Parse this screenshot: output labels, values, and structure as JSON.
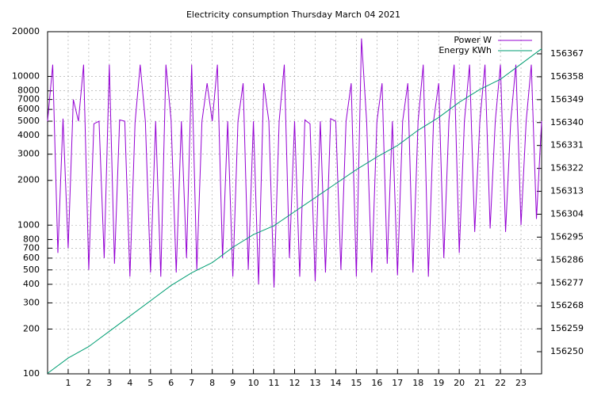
{
  "chart_data": {
    "type": "line",
    "title": "Electricity consumption Thursday March 04 2021",
    "log_y": true,
    "grid": true,
    "legend": "top-right",
    "xlim": [
      0,
      24
    ],
    "xticks": [
      1,
      2,
      3,
      4,
      5,
      6,
      7,
      8,
      9,
      10,
      11,
      12,
      13,
      14,
      15,
      16,
      17,
      18,
      19,
      20,
      21,
      22,
      23
    ],
    "ylim": [
      100,
      20000
    ],
    "yticks": [
      100,
      200,
      300,
      400,
      500,
      600,
      700,
      800,
      1000,
      2000,
      3000,
      4000,
      5000,
      6000,
      7000,
      8000,
      10000,
      20000
    ],
    "y2lim": [
      156241.3,
      156375.7
    ],
    "y2ticks": [
      156250,
      156259,
      156268,
      156277,
      156286,
      156295,
      156304,
      156313,
      156322,
      156331,
      156340,
      156349,
      156358,
      156367
    ],
    "series": [
      {
        "name": "Power W",
        "color": "#9400d3",
        "axis": "y",
        "x": [
          0,
          0.25,
          0.5,
          0.75,
          1,
          1.25,
          1.5,
          1.75,
          2,
          2.25,
          2.5,
          2.75,
          3,
          3.25,
          3.5,
          3.75,
          4,
          4.25,
          4.5,
          4.75,
          5,
          5.25,
          5.5,
          5.75,
          6,
          6.25,
          6.5,
          6.75,
          7,
          7.25,
          7.5,
          7.75,
          8,
          8.25,
          8.5,
          8.75,
          9,
          9.25,
          9.5,
          9.75,
          10,
          10.25,
          10.5,
          10.75,
          11,
          11.25,
          11.5,
          11.75,
          12,
          12.25,
          12.5,
          12.75,
          13,
          13.25,
          13.5,
          13.75,
          14,
          14.25,
          14.5,
          14.75,
          15,
          15.25,
          15.5,
          15.75,
          16,
          16.25,
          16.5,
          16.75,
          17,
          17.25,
          17.5,
          17.75,
          18,
          18.25,
          18.5,
          18.75,
          19,
          19.25,
          19.5,
          19.75,
          20,
          20.25,
          20.5,
          20.75,
          21,
          21.25,
          21.5,
          21.75,
          22,
          22.25,
          22.5,
          22.75,
          23,
          23.25,
          23.5,
          23.75,
          24
        ],
        "values": [
          5000,
          12000,
          650,
          5200,
          700,
          7000,
          5000,
          12000,
          500,
          4800,
          5000,
          600,
          12000,
          550,
          5100,
          5000,
          450,
          4900,
          12000,
          5000,
          480,
          5000,
          450,
          12000,
          5100,
          480,
          5000,
          600,
          12000,
          500,
          5000,
          9000,
          5000,
          12000,
          600,
          5000,
          450,
          5000,
          9000,
          500,
          5000,
          400,
          9000,
          5000,
          380,
          5000,
          12000,
          600,
          5000,
          450,
          5100,
          4800,
          420,
          5000,
          480,
          5200,
          5000,
          500,
          5000,
          9000,
          450,
          18000,
          5000,
          480,
          5000,
          9000,
          550,
          5000,
          460,
          5000,
          9000,
          480,
          5000,
          12000,
          450,
          5000,
          9000,
          600,
          5100,
          12000,
          650,
          5000,
          12000,
          900,
          5000,
          12000,
          950,
          5000,
          12000,
          900,
          5000,
          12000,
          1000,
          5000,
          12000,
          1100,
          5000
        ]
      },
      {
        "name": "Energy KWh",
        "color": "#009e73",
        "axis": "y2",
        "x": [
          0,
          1,
          2,
          3,
          4,
          5,
          6,
          7,
          8,
          9,
          10,
          11,
          12,
          13,
          14,
          15,
          16,
          17,
          18,
          19,
          20,
          21,
          22,
          23,
          24
        ],
        "values": [
          156241.5,
          156247.5,
          156252,
          156258,
          156264,
          156270,
          156276,
          156281,
          156285,
          156291,
          156296,
          156299.5,
          156305,
          156310.5,
          156316,
          156321.5,
          156326.5,
          156331,
          156337,
          156342,
          156348,
          156353,
          156357,
          156363,
          156369
        ]
      }
    ]
  }
}
